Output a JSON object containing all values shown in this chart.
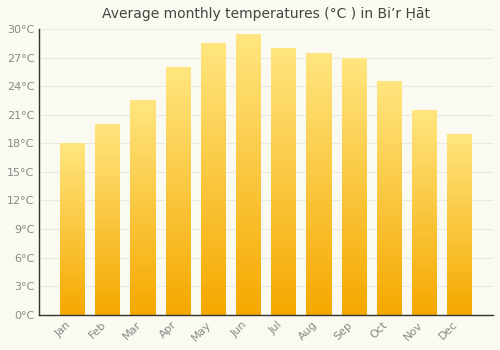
{
  "title": "Average monthly temperatures (°C ) in Biʼr Ḥāt",
  "months": [
    "Jan",
    "Feb",
    "Mar",
    "Apr",
    "May",
    "Jun",
    "Jul",
    "Aug",
    "Sep",
    "Oct",
    "Nov",
    "Dec"
  ],
  "temperatures": [
    18.0,
    20.0,
    22.5,
    26.0,
    28.5,
    29.5,
    28.0,
    27.5,
    27.0,
    24.5,
    21.5,
    19.0
  ],
  "ylim": [
    0,
    30
  ],
  "yticks": [
    0,
    3,
    6,
    9,
    12,
    15,
    18,
    21,
    24,
    27,
    30
  ],
  "bar_color_bottom": "#F5A800",
  "bar_color_top": "#FFE680",
  "background_color": "#FAFAF0",
  "grid_color": "#E8E8E8",
  "title_fontsize": 10,
  "tick_fontsize": 8,
  "tick_color": "#888888",
  "spine_color": "#333333",
  "bar_width": 0.72
}
